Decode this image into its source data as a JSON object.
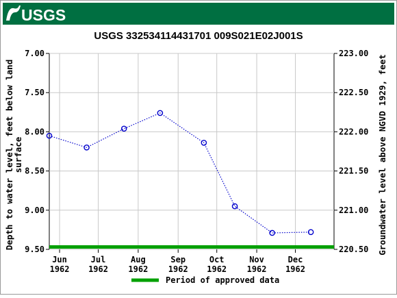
{
  "header": {
    "logo_text": "USGS",
    "bar_color": "#006f41"
  },
  "chart_data": {
    "type": "scatter",
    "title": "USGS 332534114431701 009S021E02J001S",
    "ylabel_left": "Depth to water level, feet below land surface",
    "ylabel_right": "Groundwater level above NGVD 1929, feet",
    "y_left_range": [
      7.0,
      9.5
    ],
    "y_left_ticks": [
      "7.00",
      "7.50",
      "8.00",
      "8.50",
      "9.00",
      "9.50"
    ],
    "y_left_tick_values": [
      7.0,
      7.5,
      8.0,
      8.5,
      9.0,
      9.5
    ],
    "y_right_range": [
      223.0,
      220.5
    ],
    "y_right_ticks": [
      "223.00",
      "222.50",
      "222.00",
      "221.50",
      "221.00",
      "220.50"
    ],
    "x_range": [
      "1962-05-24",
      "1962-12-31"
    ],
    "x_ticks": [
      {
        "date": "1962-06-01",
        "month": "Jun",
        "year": "1962"
      },
      {
        "date": "1962-07-01",
        "month": "Jul",
        "year": "1962"
      },
      {
        "date": "1962-08-01",
        "month": "Aug",
        "year": "1962"
      },
      {
        "date": "1962-09-01",
        "month": "Sep",
        "year": "1962"
      },
      {
        "date": "1962-10-01",
        "month": "Oct",
        "year": "1962"
      },
      {
        "date": "1962-11-01",
        "month": "Nov",
        "year": "1962"
      },
      {
        "date": "1962-12-01",
        "month": "Dec",
        "year": "1962"
      }
    ],
    "points": [
      {
        "date": "1962-05-24",
        "value": 8.05
      },
      {
        "date": "1962-06-22",
        "value": 8.2
      },
      {
        "date": "1962-07-21",
        "value": 7.96
      },
      {
        "date": "1962-08-18",
        "value": 7.76
      },
      {
        "date": "1962-09-21",
        "value": 8.14
      },
      {
        "date": "1962-10-15",
        "value": 8.95
      },
      {
        "date": "1962-11-13",
        "value": 9.29
      },
      {
        "date": "1962-12-13",
        "value": 9.28
      }
    ],
    "approved_period": [
      "1962-05-24",
      "1962-12-31"
    ],
    "series_color": "#0000cc",
    "approved_color": "#00a000",
    "grid": true,
    "legend": {
      "label": "Period of approved data",
      "placement": "bottom"
    }
  }
}
